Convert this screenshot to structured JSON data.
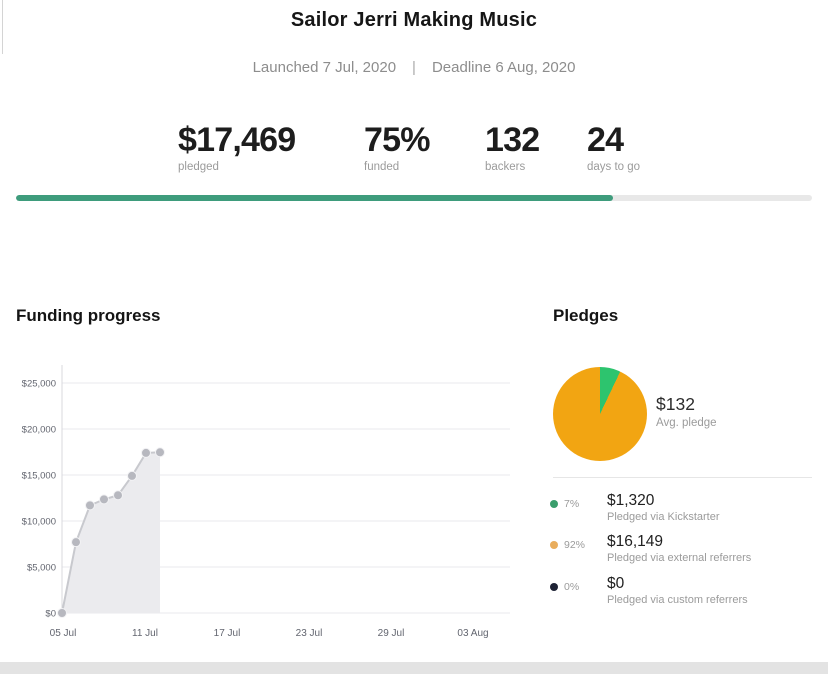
{
  "header": {
    "title": "Sailor Jerri Making Music",
    "launched": "Launched 7 Jul, 2020",
    "separator": "|",
    "deadline": "Deadline 6 Aug, 2020"
  },
  "stats": [
    {
      "value": "$17,469",
      "label": "pledged"
    },
    {
      "value": "75%",
      "label": "funded"
    },
    {
      "value": "132",
      "label": "backers"
    },
    {
      "value": "24",
      "label": "days to go"
    }
  ],
  "progress_bar": {
    "percent": 75,
    "fill_color": "#3e9c7c",
    "track_color": "#e8e8e8"
  },
  "sections": {
    "funding_title": "Funding progress",
    "pledges_title": "Pledges"
  },
  "pledges": {
    "avg_value": "$132",
    "avg_label": "Avg. pledge",
    "legend": [
      {
        "percent": "7%",
        "amount": "$1,320",
        "description": "Pledged via Kickstarter",
        "color": "#3a9e6c"
      },
      {
        "percent": "92%",
        "amount": "$16,149",
        "description": "Pledged via external referrers",
        "color": "#e9ad5c"
      },
      {
        "percent": "0%",
        "amount": "$0",
        "description": "Pledged via custom referrers",
        "color": "#1e2235"
      }
    ]
  },
  "chart_data": [
    {
      "type": "area",
      "title": "Funding progress",
      "x": [
        "05 Jul",
        "06 Jul",
        "07 Jul",
        "08 Jul",
        "09 Jul",
        "10 Jul",
        "11 Jul",
        "12 Jul"
      ],
      "values": [
        0,
        7700,
        11700,
        12350,
        12800,
        14900,
        17400,
        17469
      ],
      "x_tick_labels": [
        "05 Jul",
        "11 Jul",
        "17 Jul",
        "23 Jul",
        "29 Jul",
        "03 Aug"
      ],
      "y_tick_labels": [
        "$0",
        "$5,000",
        "$10,000",
        "$15,000",
        "$20,000",
        "$25,000"
      ],
      "y_tick_values": [
        0,
        5000,
        10000,
        15000,
        20000,
        25000
      ],
      "ylim": [
        0,
        27500
      ],
      "grid": true,
      "line_color": "#c8c9ce",
      "dot_color": "#b7b8bf",
      "fill_color": "#ebebee",
      "axis_color": "#d9d9de",
      "grid_color": "#e9e9ec",
      "tick_text_color": "#62656f"
    },
    {
      "type": "pie",
      "title": "Pledges",
      "slices": [
        {
          "label": "Pledged via Kickstarter",
          "percent": 7,
          "amount": 1320,
          "color": "#2dc46e"
        },
        {
          "label": "Pledged via external referrers",
          "percent": 92,
          "amount": 16149,
          "color": "#f2a512"
        },
        {
          "label": "Pledged via custom referrers",
          "percent": 0,
          "amount": 0,
          "color": "#1e2235"
        }
      ],
      "center_value": "$132",
      "center_label": "Avg. pledge",
      "legend_position": "below"
    }
  ]
}
